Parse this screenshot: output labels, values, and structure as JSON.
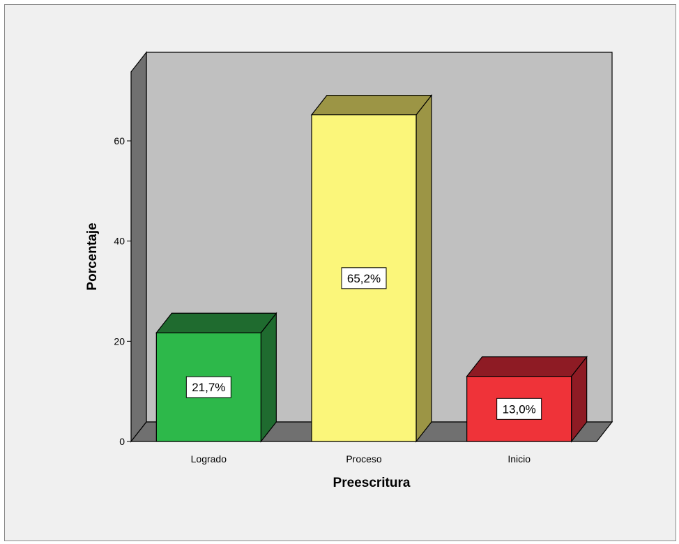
{
  "chart_data": {
    "type": "bar",
    "categories": [
      "Logrado",
      "Proceso",
      "Inicio"
    ],
    "values": [
      21.7,
      65.2,
      13.0
    ],
    "data_labels": [
      "21,7%",
      "65,2%",
      "13,0%"
    ],
    "colors": [
      "#2db84a",
      "#fbf67a",
      "#ef3339"
    ],
    "side_colors": [
      "#1f6b2f",
      "#9c9545",
      "#8e1b24"
    ],
    "xlabel": "Preescritura",
    "ylabel": "Porcentaje",
    "ylim": [
      0,
      72
    ],
    "yticks": [
      "0",
      "20",
      "40",
      "60"
    ],
    "grid": false,
    "style": "3d",
    "wall_color": "#c0c0c0",
    "floor_color": "#707070"
  }
}
